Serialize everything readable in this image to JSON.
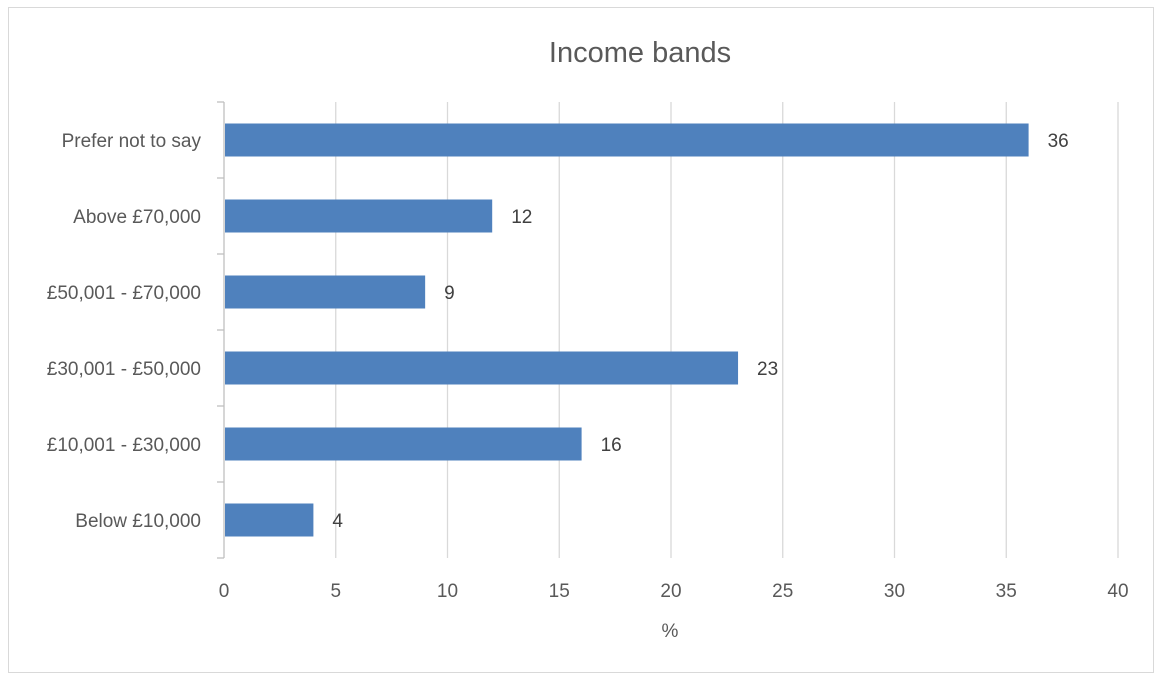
{
  "chart_data": {
    "type": "bar",
    "orientation": "horizontal",
    "title": "Income bands",
    "xlabel": "%",
    "ylabel": "",
    "categories": [
      "Below £10,000",
      "£10,001 - £30,000",
      "£30,001 - £50,000",
      "£50,001 - £70,000",
      "Above £70,000",
      "Prefer not to say"
    ],
    "values": [
      4,
      16,
      23,
      9,
      12,
      36
    ],
    "xlim": [
      0,
      40
    ],
    "xticks": [
      0,
      5,
      10,
      15,
      20,
      25,
      30,
      35,
      40
    ],
    "grid": "vertical",
    "data_labels": true,
    "legend": "none",
    "colors": {
      "bar": "#4f81bd",
      "grid": "#d9d9d9",
      "axis": "#bfbfbf",
      "text": "#595959"
    }
  }
}
